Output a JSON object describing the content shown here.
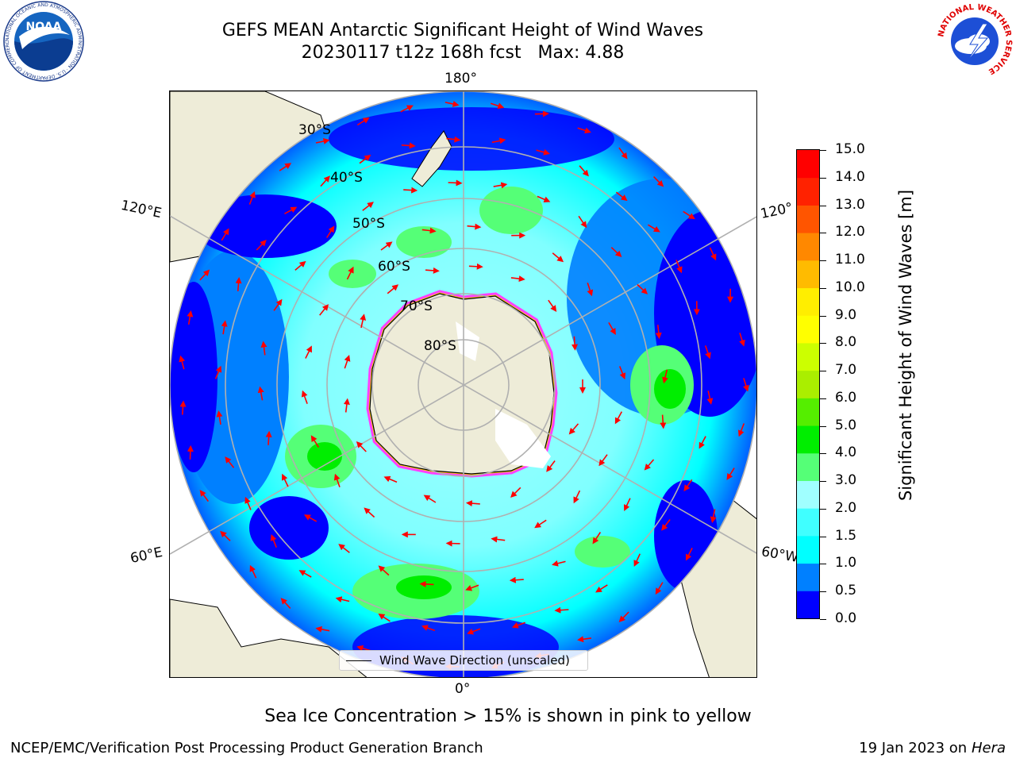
{
  "title_line1": "GEFS MEAN Antarctic Significant Height of Wind Waves",
  "title_line2": "20230117 t12z 168h fcst   Max: 4.88",
  "map": {
    "lon_labels": [
      "180°",
      "120°E",
      "120°",
      "60°E",
      "60°W",
      "0°"
    ],
    "lat_labels": [
      "30°S",
      "40°S",
      "50°S",
      "60°S",
      "70°S",
      "80°S"
    ],
    "legend_label": "Wind Wave Direction (unscaled)",
    "colors": {
      "land": "#eeecd8",
      "ice_edge": "#ff40ff",
      "ice_inner": "#ffd400",
      "grid": "#b0b0b0",
      "arrow": "#ff0000"
    }
  },
  "colorbar": {
    "label": "Significant Height of Wind Waves [m]",
    "ticks": [
      "0.0",
      "0.5",
      "1.0",
      "1.5",
      "2.0",
      "3.0",
      "4.0",
      "5.0",
      "6.0",
      "7.0",
      "8.0",
      "9.0",
      "10.0",
      "11.0",
      "12.0",
      "13.0",
      "14.0",
      "15.0"
    ],
    "colors": [
      "#0000ff",
      "#0080ff",
      "#00ffff",
      "#40ffff",
      "#a0ffff",
      "#55ff77",
      "#00ee00",
      "#55ee00",
      "#aaee00",
      "#ccff00",
      "#ffff00",
      "#ffee00",
      "#ffbb00",
      "#ff8800",
      "#ff5500",
      "#ff2200",
      "#ff0000"
    ]
  },
  "note": "Sea Ice Concentration > 15% is shown in pink to yellow",
  "credit": "NCEP/EMC/Verification Post Processing Product Generation Branch",
  "date_prefix": "19 Jan 2023 on ",
  "date_machine": "Hera",
  "logos": {
    "noaa_text": "NOAA",
    "noaa_ring": "NATIONAL OCEANIC AND ATMOSPHERIC ADMINISTRATION · U.S. DEPARTMENT OF COMMERCE",
    "nws_ring": "NATIONAL WEATHER SERVICE"
  }
}
